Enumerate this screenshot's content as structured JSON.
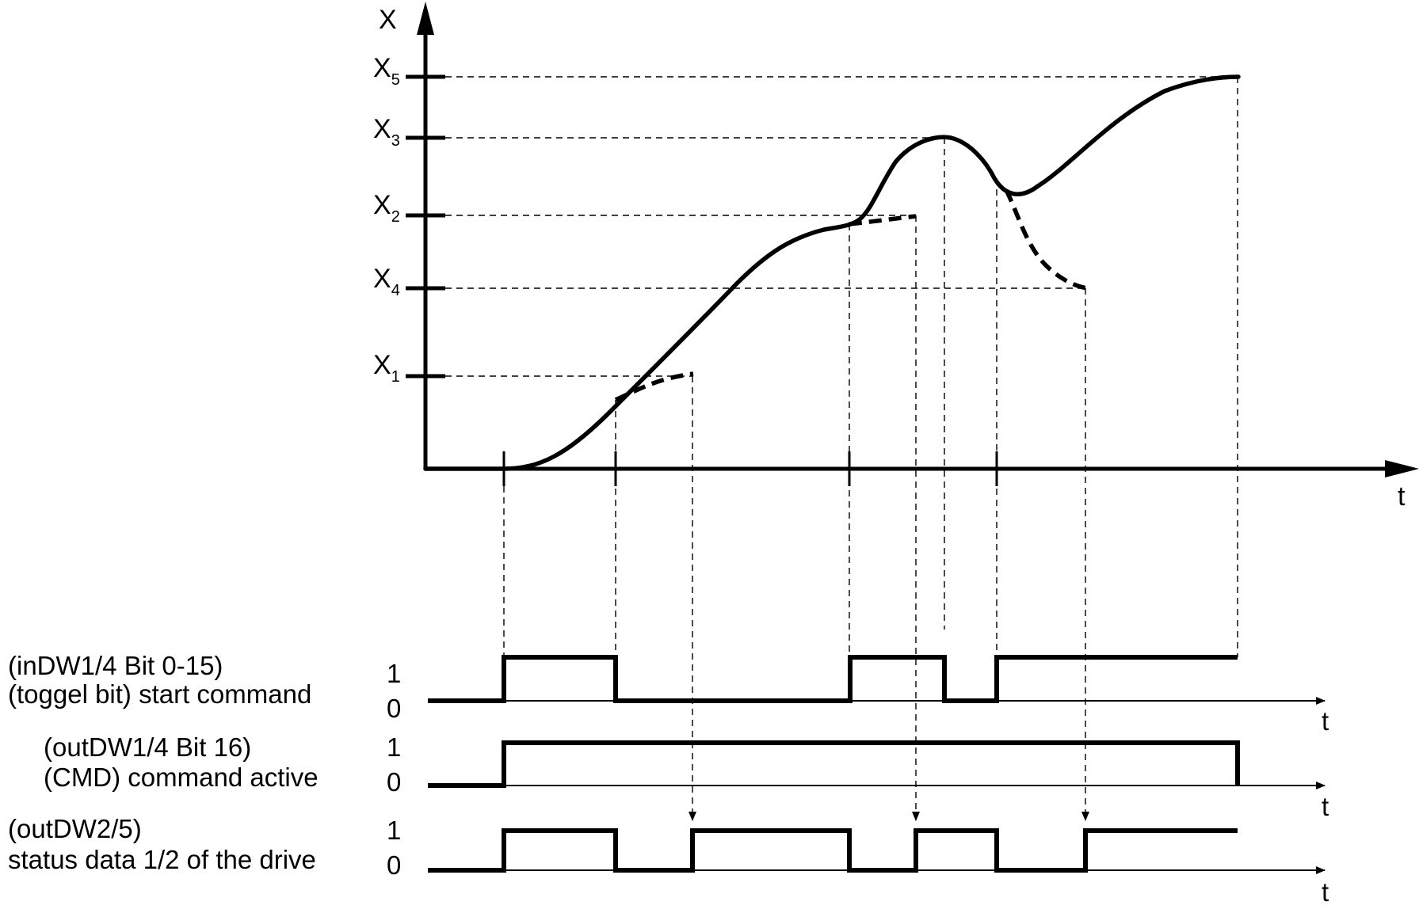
{
  "axes": {
    "y_label": "X",
    "x_label": "t"
  },
  "levels": [
    {
      "id": "X5",
      "main": "X",
      "sub": "5"
    },
    {
      "id": "X3",
      "main": "X",
      "sub": "3"
    },
    {
      "id": "X2",
      "main": "X",
      "sub": "2"
    },
    {
      "id": "X4",
      "main": "X",
      "sub": "4"
    },
    {
      "id": "X1",
      "main": "X",
      "sub": "1"
    }
  ],
  "signals": [
    {
      "name_line1": "(inDW1/4 Bit 0-15)",
      "name_line2": "(toggel bit) start command",
      "high_label": "1",
      "low_label": "0",
      "axis_label": "t"
    },
    {
      "name_line1": "(outDW1/4 Bit 16)",
      "name_line2": "(CMD) command active",
      "high_label": "1",
      "low_label": "0",
      "axis_label": "t"
    },
    {
      "name_line1": "(outDW2/5)",
      "name_line2": "status data 1/2 of the drive",
      "high_label": "1",
      "low_label": "0",
      "axis_label": "t"
    }
  ]
}
